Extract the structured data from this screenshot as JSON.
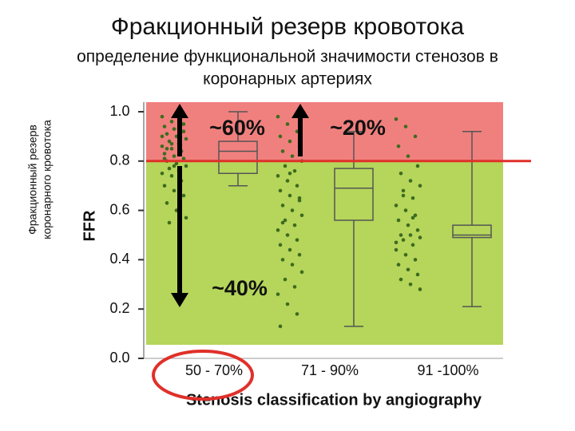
{
  "chart_data": {
    "type": "box",
    "title": "Фракционный резерв кровотока",
    "subtitle": [
      "определение функциональной значимости стенозов в",
      "коронарных артериях"
    ],
    "side_label": [
      "Фракционный резерв",
      "коронарного кровотока"
    ],
    "ylabel": "FFR",
    "xlabel": "Stenosis classification by angiography",
    "categories": [
      "50 - 70%",
      "71 - 90%",
      "91 -100%"
    ],
    "boxes": [
      {
        "min": 0.7,
        "q1": 0.75,
        "median": 0.84,
        "q3": 0.88,
        "max": 1.0
      },
      {
        "min": 0.13,
        "q1": 0.56,
        "median": 0.69,
        "q3": 0.77,
        "max": 0.92
      },
      {
        "min": 0.21,
        "q1": 0.49,
        "median": 0.5,
        "q3": 0.54,
        "max": 0.92
      }
    ],
    "points": [
      [
        0.98,
        0.96,
        0.95,
        0.94,
        0.93,
        0.92,
        0.91,
        0.9,
        0.89,
        0.88,
        0.87,
        0.86,
        0.85,
        0.84,
        0.83,
        0.82,
        0.81,
        0.8,
        0.79,
        0.78,
        0.77,
        0.76,
        0.75,
        0.74,
        0.72,
        0.7,
        0.68,
        0.66,
        0.63,
        0.6,
        0.57,
        0.55,
        0.93,
        0.9,
        0.87,
        0.84,
        0.81,
        0.78,
        0.95,
        0.85
      ],
      [
        0.98,
        0.95,
        0.92,
        0.9,
        0.88,
        0.86,
        0.84,
        0.82,
        0.8,
        0.78,
        0.76,
        0.74,
        0.72,
        0.7,
        0.68,
        0.66,
        0.64,
        0.62,
        0.6,
        0.58,
        0.56,
        0.54,
        0.52,
        0.5,
        0.48,
        0.46,
        0.44,
        0.42,
        0.4,
        0.38,
        0.35,
        0.32,
        0.29,
        0.26,
        0.22,
        0.18,
        0.13,
        0.75,
        0.65,
        0.55
      ],
      [
        0.97,
        0.94,
        0.9,
        0.86,
        0.82,
        0.78,
        0.75,
        0.72,
        0.7,
        0.68,
        0.65,
        0.62,
        0.6,
        0.58,
        0.56,
        0.54,
        0.52,
        0.5,
        0.5,
        0.49,
        0.48,
        0.46,
        0.44,
        0.42,
        0.4,
        0.38,
        0.36,
        0.34,
        0.32,
        0.3,
        0.28,
        0.66,
        0.57,
        0.47
      ]
    ],
    "threshold": 0.8,
    "annotations": [
      "~60%",
      "~20%",
      "~40%"
    ],
    "ylim": [
      0,
      1.0
    ],
    "yticks": [
      {
        "value": 0,
        "label": "0.0"
      },
      0.2,
      0.4,
      0.6,
      0.8,
      {
        "value": 1,
        "label": "1.0"
      }
    ],
    "colors": {
      "above": "#f0807e",
      "below": "#b5d65a",
      "points": "#3d6b1f",
      "box": "#555555",
      "threshold": "#e0302a"
    }
  }
}
